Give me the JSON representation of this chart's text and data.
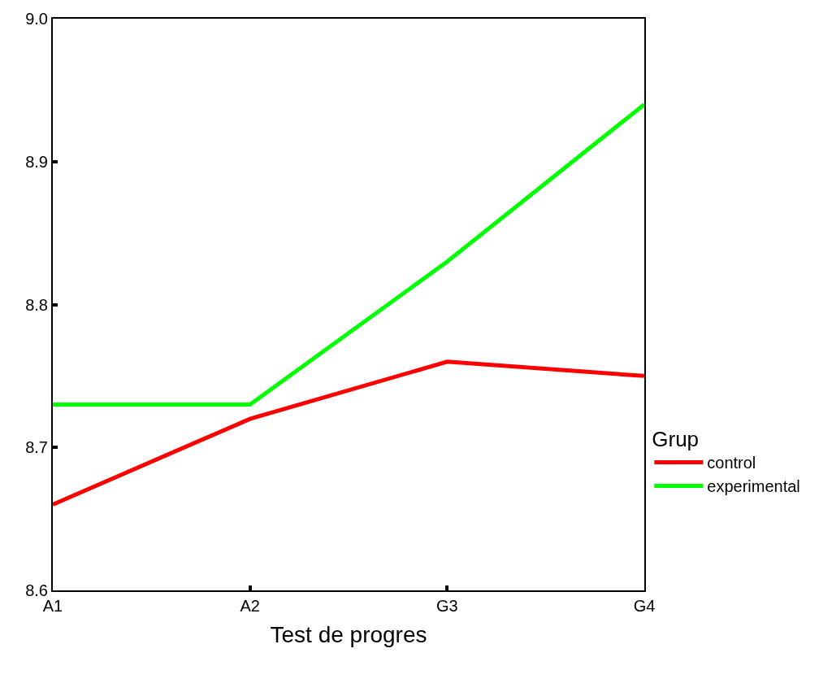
{
  "chart_data": {
    "type": "line",
    "xlabel": "Test de progres",
    "legend_title": "Grup",
    "categories": [
      "A1",
      "A2",
      "G3",
      "G4"
    ],
    "series": [
      {
        "name": "control",
        "color": "#ff0000",
        "values": [
          8.66,
          8.72,
          8.76,
          8.75
        ]
      },
      {
        "name": "experimental",
        "color": "#00ff00",
        "values": [
          8.73,
          8.73,
          8.83,
          8.94
        ]
      }
    ],
    "ylim": [
      8.6,
      9.0
    ],
    "yticks": [
      8.6,
      8.7,
      8.8,
      8.9,
      {
        "value": 9,
        "label": "9.0"
      }
    ],
    "legend": "right",
    "marker": "none",
    "line_style": "solid"
  }
}
